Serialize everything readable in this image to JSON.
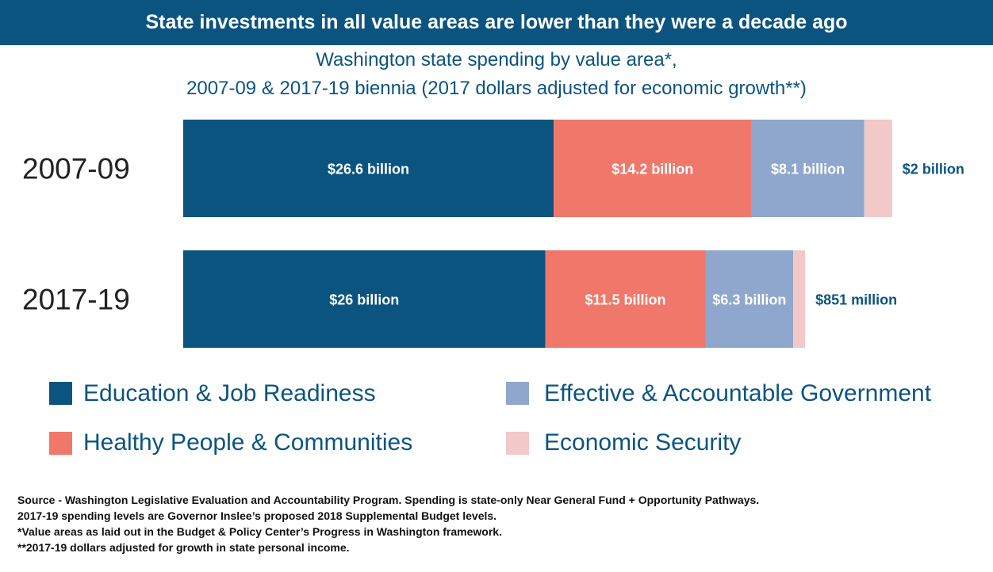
{
  "chart_data": {
    "type": "bar",
    "orientation": "horizontal",
    "stacked": true,
    "title": "State investments in all value areas are lower than they were a decade ago",
    "subtitle": [
      "Washington state spending by value area*,",
      "2007-09 & 2017-19 biennia (2017 dollars adjusted for economic growth**)"
    ],
    "categories": [
      "2007-09",
      "2017-19"
    ],
    "unit": "billion 2017 dollars",
    "series": [
      {
        "name": "Education & Job Readiness",
        "color": "#0c5480",
        "values": [
          26.6,
          26
        ],
        "labels": [
          "$26.6 billion",
          "$26 billion"
        ]
      },
      {
        "name": "Healthy People & Communities",
        "color": "#ef786a",
        "values": [
          14.2,
          11.5
        ],
        "labels": [
          "$14.2 billion",
          "$11.5 billion"
        ]
      },
      {
        "name": "Effective & Accountable Government",
        "color": "#8fa7cc",
        "values": [
          8.1,
          6.3
        ],
        "labels": [
          "$8.1 billion",
          "$6.3 billion"
        ]
      },
      {
        "name": "Economic Security",
        "color": "#f2c8c9",
        "values": [
          2,
          0.851
        ],
        "labels": [
          "$2 billion",
          "$851 million"
        ]
      }
    ],
    "legend_position": "bottom",
    "grid": false
  },
  "footnotes": [
    "Source - Washington Legislative Evaluation and Accountability Program. Spending is state-only Near General Fund + Opportunity Pathways.",
    "2017-19 spending levels are Governor Inslee’s proposed 2018 Supplemental Budget levels.",
    "*Value areas as laid out in the Budget & Policy Center’s Progress in Washington framework.",
    "**2017-19 dollars adjusted for growth in state personal income."
  ]
}
